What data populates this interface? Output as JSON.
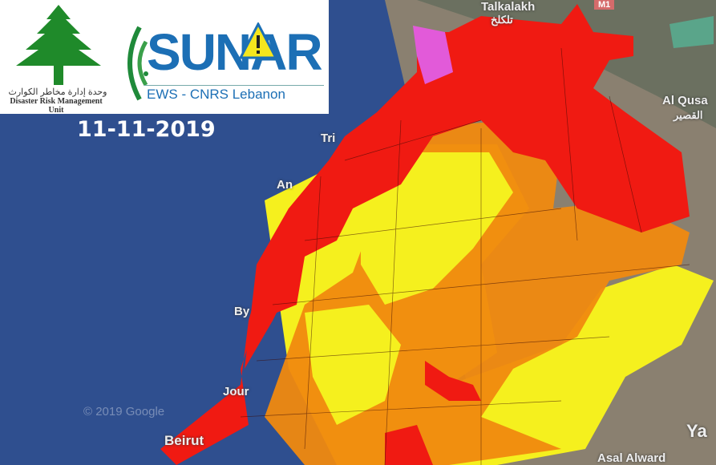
{
  "header": {
    "date": "11-11-2019",
    "drm_logo": {
      "arabic_text": "وحدة إدارة مخاطر الكوارث",
      "english_text": "Disaster Risk Management Unit"
    },
    "sunar_logo": {
      "name": "SUNAR",
      "subtitle": "EWS - CNRS Lebanon"
    }
  },
  "map": {
    "labels": [
      "Talkalakh",
      "تلكلخ",
      "Al Qusa",
      "القصير",
      "Tri",
      "An",
      "By",
      "Jour",
      "Beirut",
      "Asal Alward",
      "Ya"
    ],
    "road_shield": "M1",
    "attribution": "© 2019 Google",
    "risk_colors": {
      "very_high": "#f01a12",
      "high": "#f0890f",
      "moderate": "#f5f01e",
      "extreme": "#e25ad9"
    }
  }
}
